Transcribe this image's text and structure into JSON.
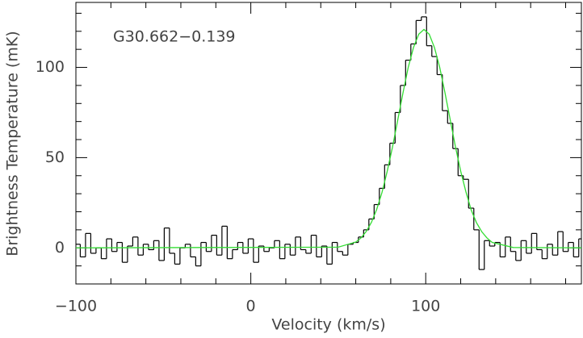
{
  "chart_data": {
    "type": "step",
    "annotation": "G30.662−0.139",
    "xlabel": "Velocity (km/s)",
    "ylabel": "Brightness Temperature (mK)",
    "xlim": [
      -100,
      189
    ],
    "ylim": [
      -20,
      136
    ],
    "xticks": [
      {
        "value": -100,
        "label": "−100"
      },
      0,
      100
    ],
    "yticks": [
      0,
      50,
      100
    ],
    "xminorticks": [
      -80,
      -60,
      -40,
      -20,
      20,
      40,
      60,
      80,
      120,
      140,
      160,
      180
    ],
    "yminorticks": [
      -10,
      10,
      20,
      30,
      40,
      60,
      70,
      80,
      90,
      110,
      120,
      130
    ],
    "series": [
      {
        "color": "#000000",
        "x0": -99,
        "dx": 3,
        "values": [
          2,
          -5,
          8,
          -3,
          0,
          -6,
          5,
          -2,
          3,
          -8,
          1,
          6,
          -4,
          2,
          -1,
          4,
          -7,
          11,
          -3,
          -9,
          0,
          2,
          -5,
          -10,
          3,
          -2,
          7,
          -4,
          12,
          -6,
          -1,
          3,
          -3,
          5,
          -8,
          1,
          -2,
          0,
          4,
          -6,
          2,
          -4,
          6,
          -1,
          -3,
          7,
          -5,
          1,
          -9,
          3,
          -2,
          -4,
          2,
          3,
          6,
          10,
          16,
          24,
          33,
          46,
          58,
          75,
          90,
          104,
          113,
          126,
          128,
          112,
          106,
          96,
          76,
          69,
          55,
          40,
          38,
          22,
          10,
          -12,
          4,
          1,
          3,
          -5,
          6,
          -2,
          -7,
          4,
          -3,
          8,
          -1,
          -6,
          2,
          -4,
          9,
          -2,
          3,
          -5,
          5
        ]
      },
      {
        "color": "#33dd33",
        "x": [
          -100,
          50,
          60,
          63,
          66,
          69,
          72,
          75,
          78,
          81,
          84,
          87,
          90,
          93,
          96,
          99,
          102,
          105,
          108,
          111,
          114,
          117,
          120,
          123,
          126,
          129,
          132,
          135,
          138,
          150,
          189
        ],
        "values": [
          0,
          0.4,
          3.2,
          5.5,
          9.1,
          14.2,
          21.4,
          30.7,
          42.5,
          55.8,
          70.8,
          85.9,
          100,
          111,
          118.4,
          121,
          118.4,
          111,
          100,
          86,
          71,
          56,
          42.5,
          31,
          21,
          14,
          9,
          5.5,
          3,
          0.2,
          0
        ]
      }
    ]
  }
}
